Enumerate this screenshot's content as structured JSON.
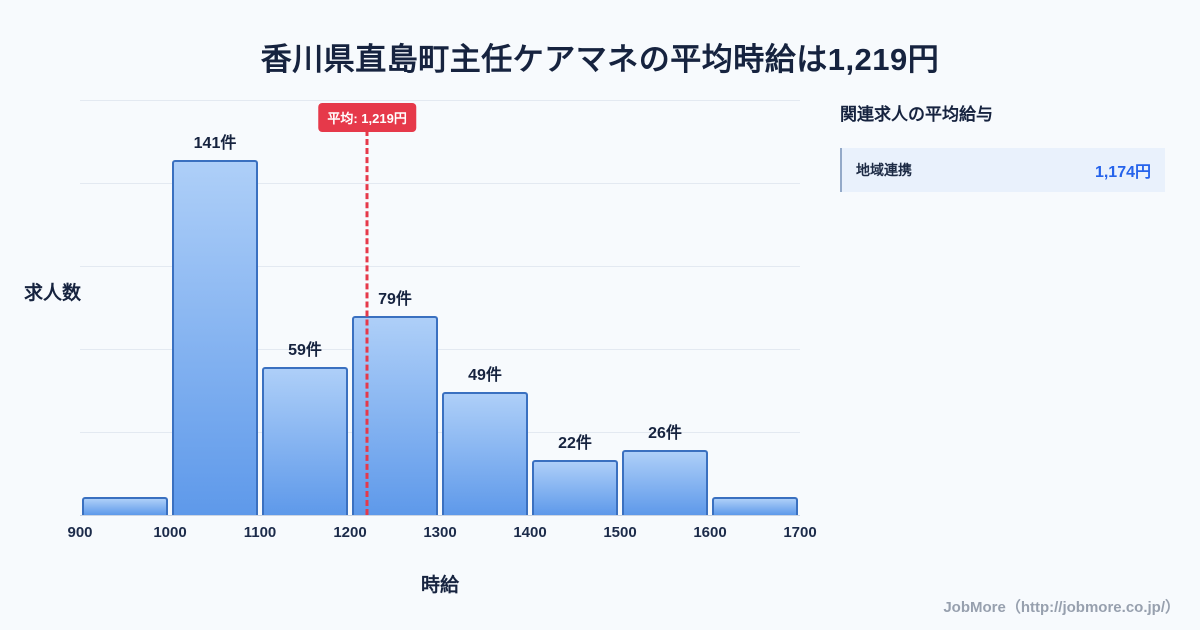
{
  "page": {
    "title": "香川県直島町主任ケアマネの平均時給は1,219円",
    "background": "#f7fafd",
    "footer": "JobMore（http://jobmore.co.jp/）"
  },
  "chart_data": {
    "type": "bar",
    "title": "香川県直島町主任ケアマネの平均時給は1,219円",
    "xlabel": "時給",
    "ylabel": "求人数",
    "xlim": [
      900,
      1700
    ],
    "ylim": [
      0,
      165
    ],
    "x_ticks": [
      900,
      1000,
      1100,
      1200,
      1300,
      1400,
      1500,
      1600,
      1700
    ],
    "bin_width": 100,
    "grid": true,
    "bars": [
      {
        "range": [
          900,
          1000
        ],
        "value": 7,
        "label": ""
      },
      {
        "range": [
          1000,
          1100
        ],
        "value": 141,
        "label": "141件"
      },
      {
        "range": [
          1100,
          1200
        ],
        "value": 59,
        "label": "59件"
      },
      {
        "range": [
          1200,
          1300
        ],
        "value": 79,
        "label": "79件"
      },
      {
        "range": [
          1300,
          1400
        ],
        "value": 49,
        "label": "49件"
      },
      {
        "range": [
          1400,
          1500
        ],
        "value": 22,
        "label": "22件"
      },
      {
        "range": [
          1500,
          1600
        ],
        "value": 26,
        "label": "26件"
      },
      {
        "range": [
          1600,
          1700
        ],
        "value": 7,
        "label": ""
      }
    ],
    "average_line": {
      "value": 1219,
      "label": "平均: 1,219円",
      "color": "#e6394a"
    },
    "colors": {
      "bar_fill_top": "#aecff8",
      "bar_fill_bottom": "#5e99ea",
      "bar_border": "#3a70c0",
      "grid": "#e3e9f1"
    }
  },
  "side_panel": {
    "title": "関連求人の平均給与",
    "rows": [
      {
        "label": "地域連携",
        "value": "1,174円"
      }
    ],
    "value_color": "#2563eb"
  }
}
